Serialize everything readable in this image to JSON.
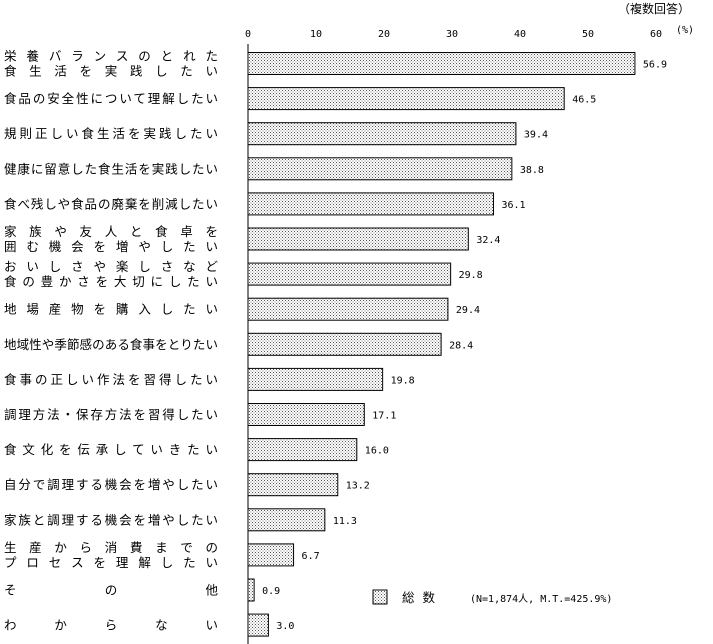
{
  "chart_data": {
    "type": "bar",
    "orientation": "horizontal",
    "note": "（複数回答）",
    "unit": "(%)",
    "xlim": [
      0,
      60
    ],
    "ticks": [
      0,
      10,
      20,
      30,
      40,
      50,
      60
    ],
    "categories": [
      [
        "栄養バランスのとれた",
        "食生活を実践したい"
      ],
      [
        "食品の安全性について理解したい"
      ],
      [
        "規則正しい食生活を実践したい"
      ],
      [
        "健康に留意した食生活を実践したい"
      ],
      [
        "食べ残しや食品の廃棄を削減したい"
      ],
      [
        "家族や友人と食卓を",
        "囲む機会を増やしたい"
      ],
      [
        "おいしさや楽しさなど",
        "食の豊かさを大切にしたい"
      ],
      [
        "地場産物を購入したい"
      ],
      [
        "地域性や季節感のある食事をとりたい"
      ],
      [
        "食事の正しい作法を習得したい"
      ],
      [
        "調理方法・保存方法を習得したい"
      ],
      [
        "食文化を伝承していきたい"
      ],
      [
        "自分で調理する機会を増やしたい"
      ],
      [
        "家族と調理する機会を増やしたい"
      ],
      [
        "生産から消費までの",
        "プロセスを理解したい"
      ],
      [
        "その他"
      ],
      [
        "わからない"
      ]
    ],
    "series": [
      {
        "name": "総数",
        "values": [
          56.9,
          46.5,
          39.4,
          38.8,
          36.1,
          32.4,
          29.8,
          29.4,
          28.4,
          19.8,
          17.1,
          16.0,
          13.2,
          11.3,
          6.7,
          0.9,
          3.0
        ]
      }
    ],
    "value_labels": [
      "56.9",
      "46.5",
      "39.4",
      "38.8",
      "36.1",
      "32.4",
      "29.8",
      "29.4",
      "28.4",
      "19.8",
      "17.1",
      "16.0",
      "13.2",
      "11.3",
      "6.7",
      "0.9",
      "3.0"
    ],
    "legend_position": "bottom-right",
    "legend_note": "(N=1,874人, M.T.=425.9%)",
    "grid": false,
    "bar_fill": "#e6e6e6"
  }
}
